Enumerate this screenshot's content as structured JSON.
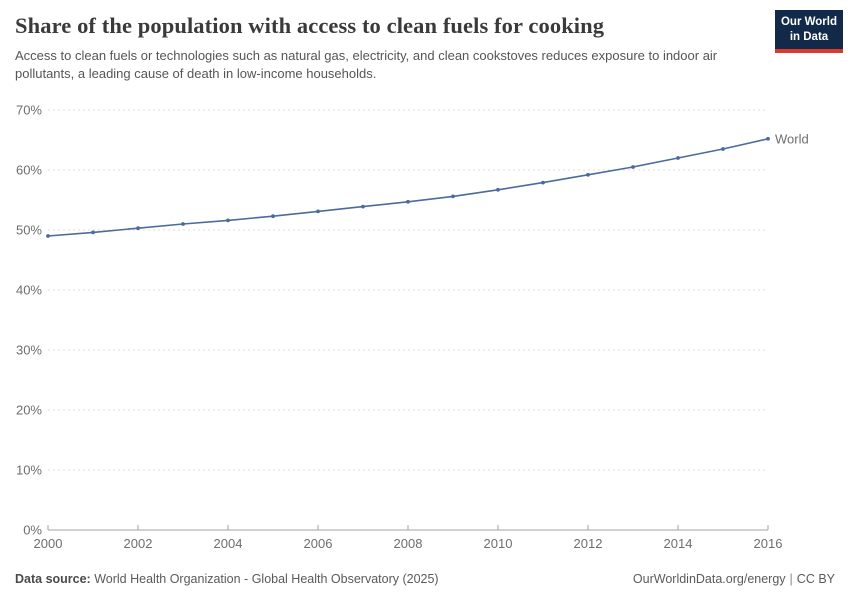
{
  "header": {
    "title": "Share of the population with access to clean fuels for cooking",
    "subtitle": "Access to clean fuels or technologies such as natural gas, electricity, and clean cookstoves reduces exposure to indoor air pollutants, a leading cause of death in low-income households.",
    "logo": {
      "line1": "Our World",
      "line2": "in Data"
    }
  },
  "chart_data": {
    "type": "line",
    "title": "Share of the population with access to clean fuels for cooking",
    "xlabel": "",
    "ylabel": "",
    "xlim": [
      2000,
      2016
    ],
    "ylim": [
      0,
      70
    ],
    "grid": "horizontal-dashed",
    "legend_position": "end-of-line",
    "x": [
      2000,
      2001,
      2002,
      2003,
      2004,
      2005,
      2006,
      2007,
      2008,
      2009,
      2010,
      2011,
      2012,
      2013,
      2014,
      2015,
      2016
    ],
    "series": [
      {
        "name": "World",
        "color": "#4C6A9C",
        "values": [
          49.0,
          49.6,
          50.3,
          51.0,
          51.6,
          52.3,
          53.1,
          53.9,
          54.7,
          55.6,
          56.7,
          57.9,
          59.2,
          60.5,
          62.0,
          63.5,
          65.2
        ]
      }
    ],
    "y_axis": {
      "tick_values": [
        0,
        10,
        20,
        30,
        40,
        50,
        60,
        70
      ],
      "tick_labels": [
        "0%",
        "10%",
        "20%",
        "30%",
        "40%",
        "50%",
        "60%",
        "70%"
      ]
    },
    "x_axis": {
      "tick_values": [
        2000,
        2002,
        2004,
        2006,
        2008,
        2010,
        2012,
        2014,
        2016
      ],
      "tick_labels": [
        "2000",
        "2002",
        "2004",
        "2006",
        "2008",
        "2010",
        "2012",
        "2014",
        "2016"
      ]
    }
  },
  "footer": {
    "datasource_label": "Data source:",
    "datasource_value": "World Health Organization - Global Health Observatory (2025)",
    "link": "OurWorldinData.org/energy",
    "separator": "|",
    "license": "CC BY"
  },
  "colors": {
    "series_world": "#4C6A9C",
    "gridline": "#dcdcdc",
    "axis": "#a3a3a3",
    "axis_text": "#6e6e6e",
    "logo_bg": "#12294a",
    "logo_red": "#d93a2b"
  }
}
